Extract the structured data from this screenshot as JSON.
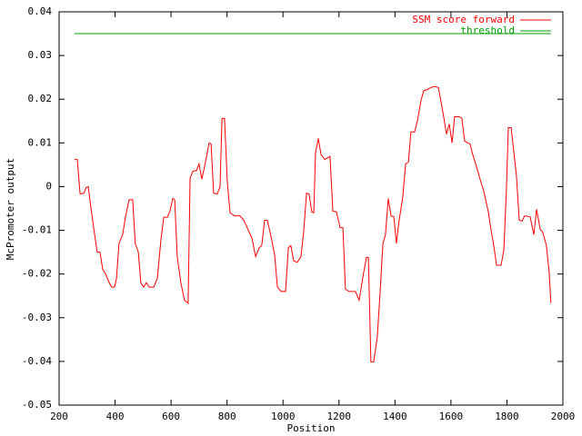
{
  "chart_data": {
    "type": "line",
    "xlabel": "Position",
    "ylabel": "McPromoter output",
    "xlim": [
      200,
      2000
    ],
    "ylim": [
      -0.05,
      0.04
    ],
    "xticks": [
      200,
      400,
      600,
      800,
      1000,
      1200,
      1400,
      1600,
      1800,
      2000
    ],
    "yticks": [
      -0.05,
      -0.04,
      -0.03,
      -0.02,
      -0.01,
      0,
      0.01,
      0.02,
      0.03,
      0.04
    ],
    "legend": "top-right",
    "series": [
      {
        "name": "SSM score forward",
        "color": "#ff0000",
        "x": [
          255,
          265,
          275,
          288,
          297,
          304,
          314,
          327,
          336,
          346,
          356,
          366,
          379,
          388,
          398,
          405,
          414,
          427,
          437,
          450,
          463,
          472,
          483,
          492,
          502,
          512,
          522,
          538,
          551,
          564,
          574,
          587,
          596,
          606,
          613,
          622,
          635,
          648,
          661,
          668,
          678,
          691,
          700,
          710,
          723,
          736,
          743,
          752,
          765,
          775,
          782,
          791,
          801,
          811,
          827,
          846,
          860,
          872,
          889,
          902,
          915,
          924,
          934,
          944,
          957,
          970,
          980,
          993,
          1009,
          1019,
          1028,
          1038,
          1051,
          1064,
          1074,
          1084,
          1093,
          1103,
          1110,
          1116,
          1126,
          1136,
          1149,
          1168,
          1178,
          1191,
          1204,
          1214,
          1223,
          1236,
          1259,
          1272,
          1288,
          1298,
          1305,
          1314,
          1324,
          1337,
          1347,
          1357,
          1366,
          1376,
          1386,
          1396,
          1405,
          1415,
          1428,
          1438,
          1448,
          1457,
          1470,
          1480,
          1493,
          1503,
          1516,
          1529,
          1542,
          1555,
          1565,
          1575,
          1584,
          1594,
          1604,
          1613,
          1630,
          1639,
          1649,
          1668,
          1678,
          1691,
          1704,
          1717,
          1733,
          1743,
          1753,
          1763,
          1779,
          1789,
          1798,
          1805,
          1815,
          1824,
          1834,
          1844,
          1854,
          1863,
          1883,
          1896,
          1906,
          1919,
          1928,
          1941,
          1951,
          1957
        ],
        "values": [
          0.0062,
          0.0062,
          -0.0017,
          -0.0015,
          -0.0002,
          0,
          -0.005,
          -0.011,
          -0.015,
          -0.015,
          -0.019,
          -0.02,
          -0.022,
          -0.023,
          -0.023,
          -0.021,
          -0.013,
          -0.011,
          -0.007,
          -0.003,
          -0.003,
          -0.013,
          -0.015,
          -0.022,
          -0.023,
          -0.022,
          -0.023,
          -0.023,
          -0.021,
          -0.012,
          -0.007,
          -0.007,
          -0.0056,
          -0.0027,
          -0.003,
          -0.016,
          -0.022,
          -0.026,
          -0.0267,
          0.002,
          0.0035,
          0.0037,
          0.0052,
          0.0017,
          0.0056,
          0.01,
          0.0098,
          -0.0015,
          -0.0017,
          0,
          0.0156,
          0.0156,
          0.001,
          -0.006,
          -0.0067,
          -0.0067,
          -0.0077,
          -0.0094,
          -0.0118,
          -0.016,
          -0.014,
          -0.0135,
          -0.0077,
          -0.0077,
          -0.0114,
          -0.0156,
          -0.023,
          -0.024,
          -0.024,
          -0.014,
          -0.0135,
          -0.017,
          -0.0173,
          -0.016,
          -0.0102,
          -0.0015,
          -0.0017,
          -0.0058,
          -0.006,
          0.0077,
          0.011,
          0.0073,
          0.0062,
          0.0069,
          -0.0056,
          -0.0058,
          -0.0094,
          -0.0094,
          -0.0235,
          -0.024,
          -0.024,
          -0.026,
          -0.0197,
          -0.0162,
          -0.0162,
          -0.0401,
          -0.0401,
          -0.0343,
          -0.024,
          -0.013,
          -0.011,
          -0.0027,
          -0.0067,
          -0.0069,
          -0.013,
          -0.0077,
          -0.0023,
          0.0052,
          0.0056,
          0.0125,
          0.0125,
          0.015,
          0.0197,
          0.022,
          0.0222,
          0.0227,
          0.0229,
          0.0227,
          0.0193,
          0.0156,
          0.012,
          0.0143,
          0.01,
          0.016,
          0.016,
          0.0156,
          0.0104,
          0.0098,
          0.0073,
          0.0046,
          0.0017,
          -0.001,
          -0.0056,
          -0.0098,
          -0.0135,
          -0.018,
          -0.018,
          -0.0145,
          -0.001,
          0.0135,
          0.0135,
          0.0083,
          0.0025,
          -0.0077,
          -0.0079,
          -0.0067,
          -0.0069,
          -0.011,
          -0.0052,
          -0.0098,
          -0.0104,
          -0.0135,
          -0.0197,
          -0.0266
        ]
      },
      {
        "name": "threshold",
        "color": "#00a000",
        "x": [
          255,
          1957
        ],
        "values": [
          0.035,
          0.035
        ]
      }
    ]
  }
}
